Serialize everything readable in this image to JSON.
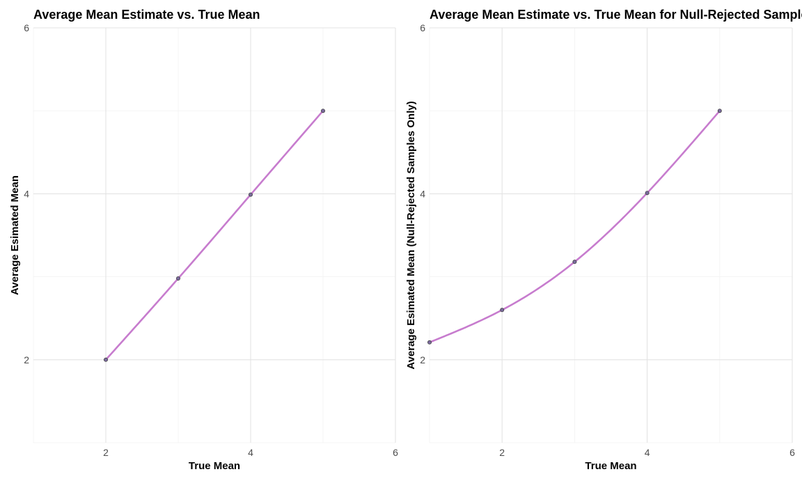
{
  "colors": {
    "line": "#c77cce",
    "point_fill": "#7a6a9e",
    "point_stroke": "#444444",
    "grid_major": "#e3e3e3",
    "grid_minor": "#f2f2f2"
  },
  "chart_data": [
    {
      "type": "line",
      "title": "Average Mean Estimate vs. True Mean",
      "xlabel": "True Mean",
      "ylabel": "Average Esimated Mean",
      "xlim": [
        1,
        6
      ],
      "ylim": [
        1,
        6
      ],
      "x_ticks": [
        2,
        4,
        6
      ],
      "y_ticks": [
        2,
        4,
        6
      ],
      "grid": true,
      "smoothed": true,
      "series": [
        {
          "x": [
            2,
            3,
            4,
            5
          ],
          "y": [
            2.0,
            2.98,
            3.99,
            5.0
          ]
        }
      ]
    },
    {
      "type": "line",
      "title": "Average Mean Estimate vs. True Mean for Null-Rejected Samples",
      "xlabel": "True Mean",
      "ylabel": "Average Esimated Mean (Null-Rejected Samples Only)",
      "xlim": [
        1,
        6
      ],
      "ylim": [
        1,
        6
      ],
      "x_ticks": [
        2,
        4,
        6
      ],
      "y_ticks": [
        2,
        4,
        6
      ],
      "grid": true,
      "smoothed": true,
      "series": [
        {
          "x": [
            1,
            2,
            3,
            4,
            5
          ],
          "y": [
            2.21,
            2.6,
            3.18,
            4.01,
            5.0
          ]
        }
      ]
    }
  ]
}
